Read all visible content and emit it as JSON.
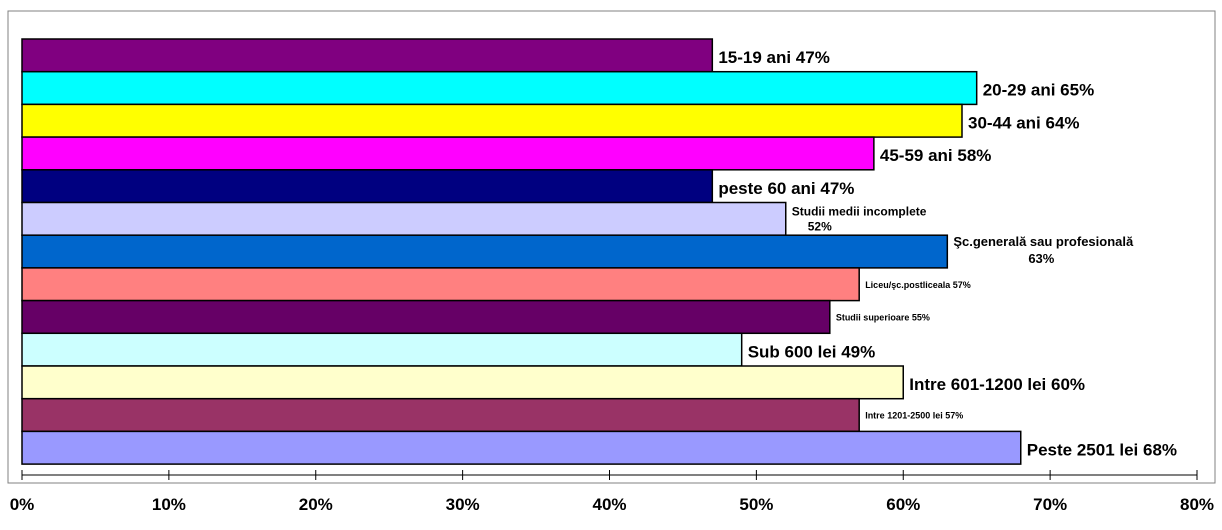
{
  "chart_data": {
    "type": "bar",
    "orientation": "horizontal",
    "xlim": [
      0,
      80
    ],
    "x_ticks": [
      "0%",
      "10%",
      "20%",
      "30%",
      "40%",
      "50%",
      "60%",
      "70%",
      "80%"
    ],
    "grid": false,
    "legend": "none",
    "bars": [
      {
        "value": 47,
        "label": "15-19 ani  47%",
        "color": "#800080"
      },
      {
        "value": 65,
        "label": "20-29 ani 65%",
        "color": "#00FFFF"
      },
      {
        "value": 64,
        "label": "30-44 ani 64%",
        "color": "#FFFF00"
      },
      {
        "value": 58,
        "label": "45-59 ani 58%",
        "color": "#FF00FF"
      },
      {
        "value": 47,
        "label": "peste 60 ani 47%",
        "color": "#000080"
      },
      {
        "value": 52,
        "label": [
          "Studii medii incomplete",
          "52%"
        ],
        "color": "#CCCCFF"
      },
      {
        "value": 63,
        "label": [
          "Şc.generală sau profesională",
          "63%"
        ],
        "color": "#0066CC"
      },
      {
        "value": 57,
        "label": "Liceu/şc.postliceala 57%",
        "color": "#FF8080"
      },
      {
        "value": 55,
        "label": "Studii superioare 55%",
        "color": "#660066"
      },
      {
        "value": 49,
        "label": "Sub 600 lei 49%",
        "color": "#CCFFFF"
      },
      {
        "value": 60,
        "label": "Intre 601-1200 lei 60%",
        "color": "#FFFFCC"
      },
      {
        "value": 57,
        "label": "Intre 1201-2500 lei 57%",
        "color": "#993366"
      },
      {
        "value": 68,
        "label": "Peste 2501 lei 68%",
        "color": "#9999FF"
      }
    ]
  }
}
